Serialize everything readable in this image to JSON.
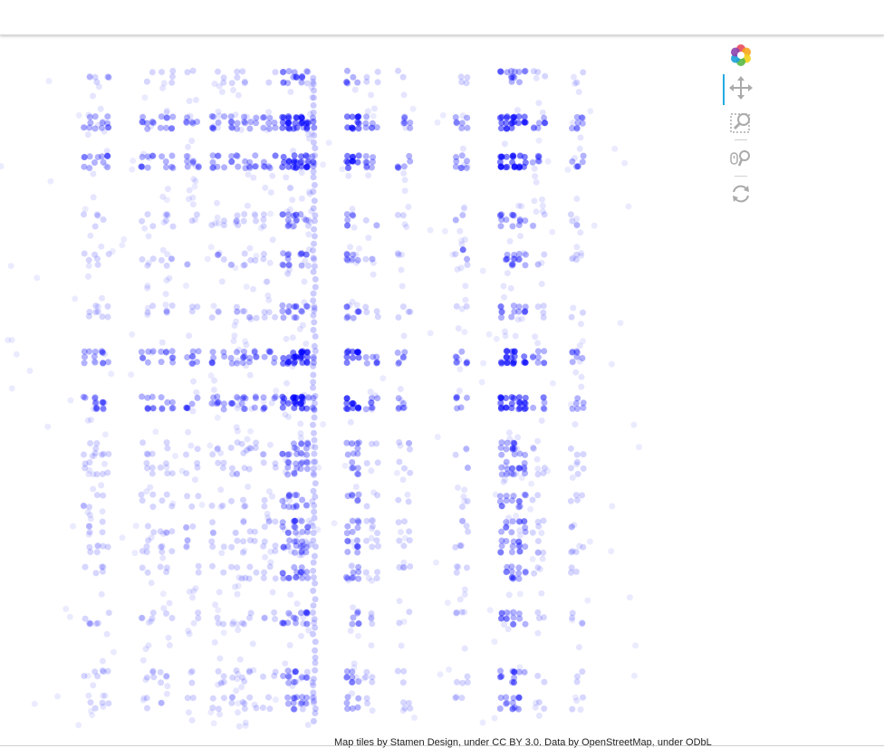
{
  "attribution": "Map tiles by Stamen Design, under CC BY 3.0. Data by OpenStreetMap, under ODbL",
  "colors": {
    "point": "#0000ff",
    "toolbar_icon": "#aaaaaa",
    "active_tool": "#26aae1"
  },
  "toolbar": {
    "logo": "bokeh-logo-icon",
    "tools": [
      {
        "name": "pan-tool",
        "icon": "move-arrows-icon",
        "active": true
      },
      {
        "name": "box-zoom-tool",
        "icon": "box-zoom-magnifier-icon",
        "active": false
      },
      {
        "name": "wheel-zoom-tool",
        "icon": "wheel-zoom-icon",
        "active": false
      },
      {
        "name": "reset-tool",
        "icon": "reset-arrows-icon",
        "active": false
      }
    ]
  },
  "map": {
    "tile_style": "blank",
    "marker": "circle",
    "marker_alpha": 0.1,
    "density": {
      "strong_rows": [
        0.07,
        0.13,
        0.43,
        0.5
      ],
      "medium_rows": [
        0.0,
        0.22,
        0.28,
        0.36,
        0.57,
        0.6,
        0.65,
        0.69,
        0.72,
        0.76,
        0.83,
        0.92,
        0.96
      ],
      "strong_columns": [
        0.45,
        0.47,
        0.55,
        0.79,
        0.81
      ],
      "medium_columns": [
        0.14,
        0.16,
        0.23,
        0.26,
        0.3,
        0.34,
        0.37,
        0.39,
        0.42,
        0.48,
        0.58,
        0.63,
        0.72,
        0.84,
        0.9
      ]
    }
  }
}
